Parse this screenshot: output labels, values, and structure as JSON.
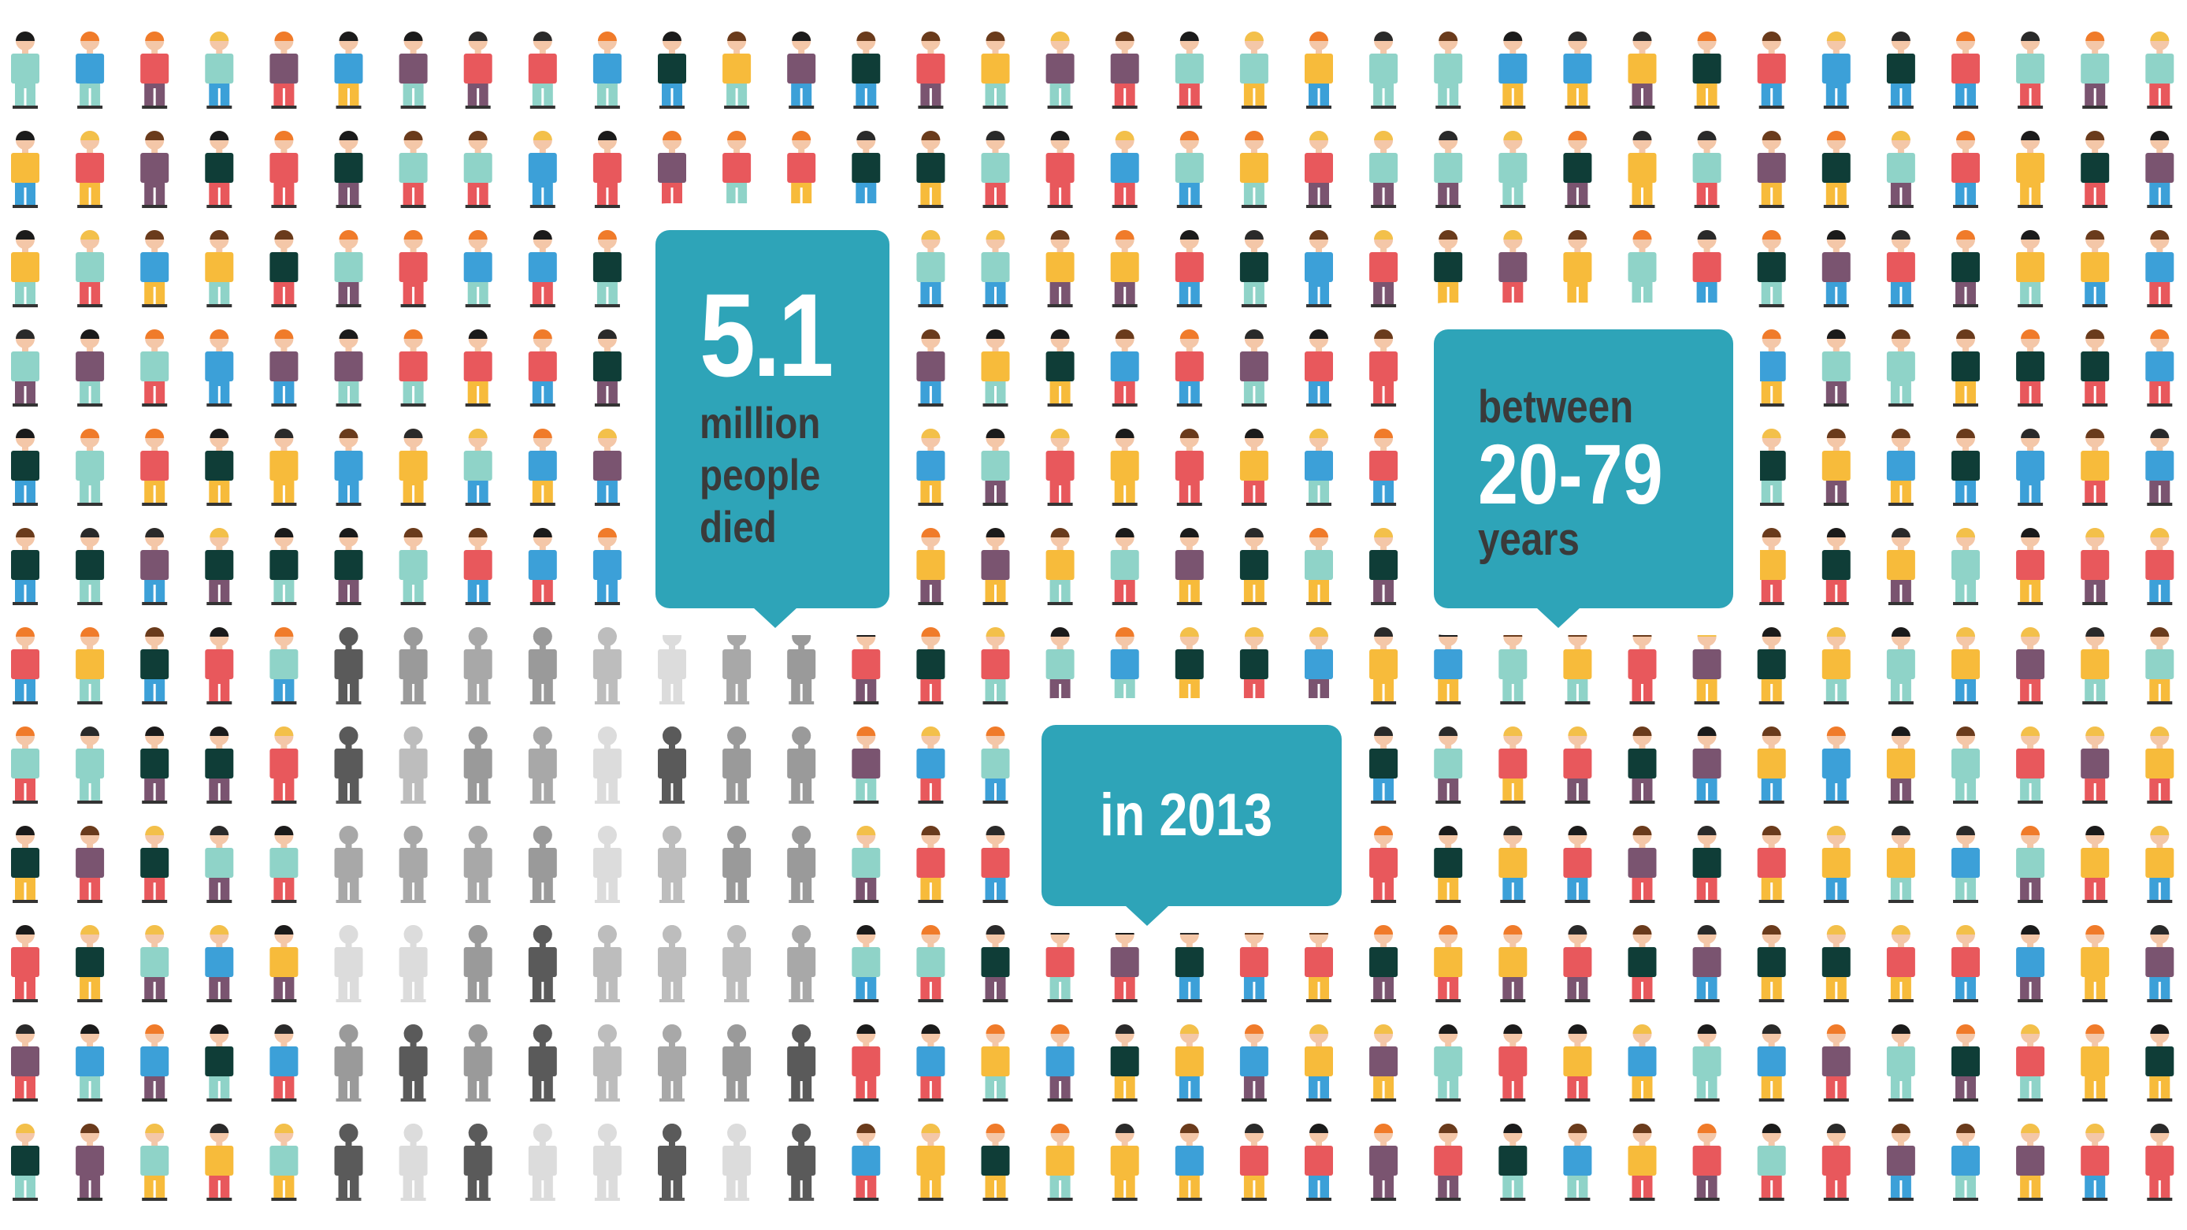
{
  "callouts": [
    {
      "big": "5.1",
      "lines": [
        "million",
        "people",
        "died"
      ]
    },
    {
      "top": "between",
      "big": "20-79",
      "bottom": "years"
    },
    {
      "text": "in 2013"
    }
  ]
}
